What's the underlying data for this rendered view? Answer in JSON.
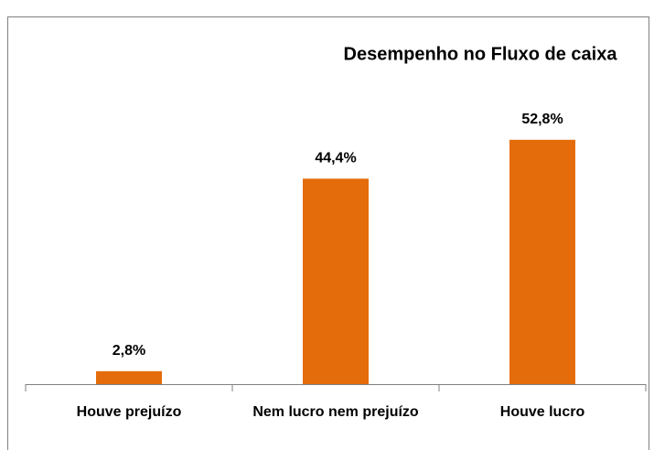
{
  "chart_data": {
    "type": "bar",
    "title": "Desempenho no Fluxo de caixa",
    "categories": [
      "Houve prejuízo",
      "Nem lucro nem prejuízo",
      "Houve lucro"
    ],
    "values": [
      2.8,
      44.4,
      52.8
    ],
    "value_labels": [
      "2,8%",
      "44,4%",
      "52,8%"
    ],
    "color": "#e46c0a"
  }
}
